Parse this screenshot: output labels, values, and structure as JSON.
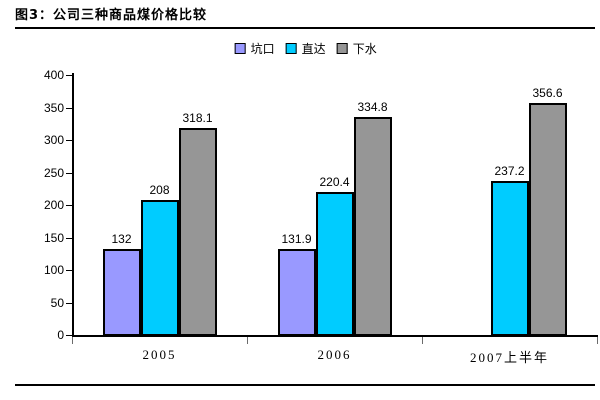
{
  "figure": {
    "title": "图3：公司三种商品煤价格比较"
  },
  "chart_data": {
    "type": "bar",
    "title": "图3：公司三种商品煤价格比较",
    "categories": [
      "2005",
      "2006",
      "2007上半年"
    ],
    "series": [
      {
        "name": "坑口",
        "color": "#9999FF",
        "values": [
          132,
          131.9,
          null
        ],
        "labels": [
          "132",
          "131.9",
          null
        ]
      },
      {
        "name": "直达",
        "color": "#00CCFF",
        "values": [
          208,
          220.4,
          237.2
        ],
        "labels": [
          "208",
          "220.4",
          "237.2"
        ]
      },
      {
        "name": "下水",
        "color": "#969696",
        "values": [
          318.1,
          334.8,
          356.6
        ],
        "labels": [
          "318.1",
          "334.8",
          "356.6"
        ]
      }
    ],
    "xlabel": "",
    "ylabel": "",
    "ylim": [
      0,
      400
    ],
    "yticks": [
      0,
      50,
      100,
      150,
      200,
      250,
      300,
      350,
      400
    ],
    "grid": false,
    "legend_position": "top-center",
    "bar_border_color": "#000000",
    "axis_color": "#000000"
  }
}
